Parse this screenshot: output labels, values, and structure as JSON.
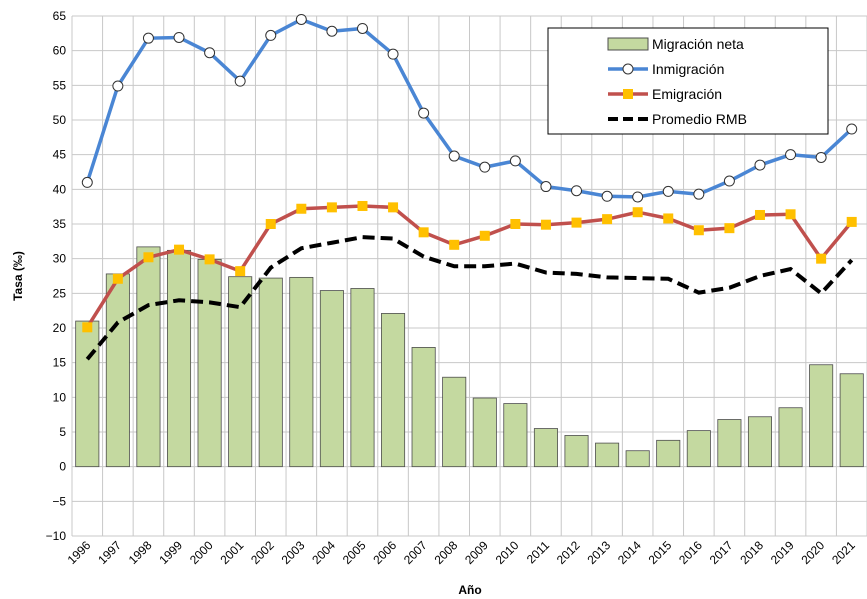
{
  "chart_data": {
    "type": "bar",
    "y_label": "Tasa (‰)",
    "x_label": "Año",
    "categories": [
      "1996",
      "1997",
      "1998",
      "1999",
      "2000",
      "2001",
      "2002",
      "2003",
      "2004",
      "2005",
      "2006",
      "2007",
      "2008",
      "2009",
      "2010",
      "2011",
      "2012",
      "2013",
      "2014",
      "2015",
      "2016",
      "2017",
      "2018",
      "2019",
      "2020",
      "2021"
    ],
    "series": [
      {
        "name": "Migración neta",
        "type": "bar",
        "color": "#c4d9a0",
        "values": [
          21,
          27.8,
          31.7,
          31.2,
          29.9,
          27.4,
          27.2,
          27.3,
          25.4,
          25.7,
          22.1,
          17.2,
          12.9,
          9.9,
          9.1,
          5.5,
          4.5,
          3.4,
          2.3,
          3.8,
          5.2,
          6.8,
          7.2,
          8.5,
          14.7,
          13.4
        ]
      },
      {
        "name": "Inmigración",
        "type": "line",
        "color": "#4a86d4",
        "marker": "circle",
        "values": [
          41,
          54.9,
          61.8,
          61.9,
          59.7,
          55.6,
          62.2,
          64.5,
          62.8,
          63.2,
          59.5,
          51,
          44.8,
          43.2,
          44.1,
          40.4,
          39.8,
          39.0,
          38.9,
          39.7,
          39.3,
          41.2,
          43.5,
          45.0,
          44.6,
          48.7
        ]
      },
      {
        "name": "Emigración",
        "type": "line",
        "color": "#c0504d",
        "marker": "square",
        "values": [
          20.1,
          27.1,
          30.2,
          31.3,
          29.9,
          28.2,
          35.0,
          37.2,
          37.4,
          37.6,
          37.4,
          33.8,
          32.0,
          33.3,
          35.0,
          34.9,
          35.2,
          35.7,
          36.7,
          35.8,
          34.1,
          34.4,
          36.3,
          36.4,
          30.0,
          35.3
        ]
      },
      {
        "name": "Promedio RMB",
        "type": "line",
        "color": "#000000",
        "dashed": true,
        "values": [
          15.5,
          20.8,
          23.3,
          24.0,
          23.7,
          23.0,
          28.7,
          31.5,
          32.3,
          33.1,
          32.9,
          30.3,
          28.9,
          28.9,
          29.3,
          28.0,
          27.8,
          27.3,
          27.2,
          27.1,
          25.1,
          25.8,
          27.5,
          28.5,
          25.0,
          29.8
        ]
      }
    ],
    "ylim": [
      -10,
      65
    ],
    "yticks": [
      {
        "value": -10,
        "label": "−10"
      },
      {
        "value": -5,
        "label": "−5"
      },
      0,
      5,
      10,
      15,
      20,
      25,
      30,
      35,
      40,
      45,
      50,
      55,
      60,
      65
    ],
    "grid": true,
    "legend": "top-right"
  }
}
